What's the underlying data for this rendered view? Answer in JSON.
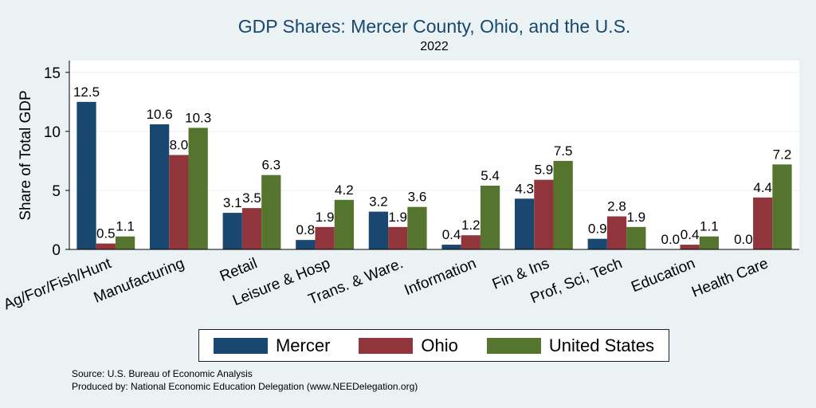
{
  "chart_data": {
    "type": "bar",
    "title": "GDP Shares: Mercer County, Ohio, and the U.S.",
    "subtitle": "2022",
    "ylabel": "Share of Total GDP",
    "xlabel": "",
    "ylim": [
      0,
      16
    ],
    "yticks": [
      0,
      5,
      10,
      15
    ],
    "grid": true,
    "legend_position": "bottom",
    "categories": [
      "Ag/For/Fish/Hunt",
      "Manufacturing",
      "Retail",
      "Leisure & Hosp",
      "Trans. & Ware.",
      "Information",
      "Fin & Ins",
      "Prof, Sci, Tech",
      "Education",
      "Health Care"
    ],
    "series": [
      {
        "name": "Mercer",
        "color": "#1a476f",
        "values": [
          12.5,
          10.6,
          3.1,
          0.8,
          3.2,
          0.4,
          4.3,
          0.9,
          0.0,
          0.0
        ]
      },
      {
        "name": "Ohio",
        "color": "#90353b",
        "values": [
          0.5,
          8.0,
          3.5,
          1.9,
          1.9,
          1.2,
          5.9,
          2.8,
          0.4,
          4.4
        ]
      },
      {
        "name": "United States",
        "color": "#55752f",
        "values": [
          1.1,
          10.3,
          6.3,
          4.2,
          3.6,
          5.4,
          7.5,
          1.9,
          1.1,
          7.2
        ]
      }
    ]
  },
  "notes": {
    "source": "Source: U.S. Bureau of Economic Analysis",
    "produced_by": "Produced by: National Economic Education Delegation (www.NEEDelegation.org)"
  }
}
